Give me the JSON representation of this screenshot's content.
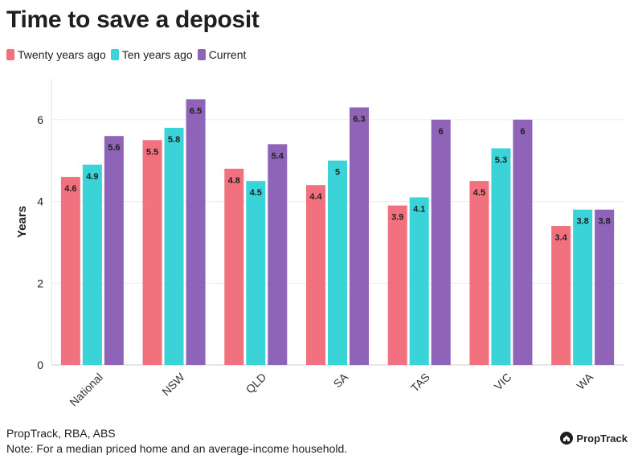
{
  "title": "Time to save a deposit",
  "source": "PropTrack, RBA, ABS",
  "note": "Note: For a median priced home and an average-income household.",
  "brand": "PropTrack",
  "chart_data": {
    "type": "bar",
    "title": "Time to save a deposit",
    "xlabel": "",
    "ylabel": "Years",
    "ylim": [
      0,
      7
    ],
    "yticks": [
      0,
      2,
      4,
      6
    ],
    "grid": true,
    "legend_position": "top-left",
    "categories": [
      "National",
      "NSW",
      "QLD",
      "SA",
      "TAS",
      "VIC",
      "WA"
    ],
    "series": [
      {
        "name": "Twenty years ago",
        "color": "#F2717E",
        "values": [
          4.6,
          5.5,
          4.8,
          4.4,
          3.9,
          4.5,
          3.4
        ]
      },
      {
        "name": "Ten years ago",
        "color": "#3AD3D8",
        "values": [
          4.9,
          5.8,
          4.5,
          5,
          4.1,
          5.3,
          3.8
        ]
      },
      {
        "name": "Current",
        "color": "#8E63B8",
        "values": [
          5.6,
          6.5,
          5.4,
          6.3,
          6,
          6,
          3.8
        ]
      }
    ]
  }
}
